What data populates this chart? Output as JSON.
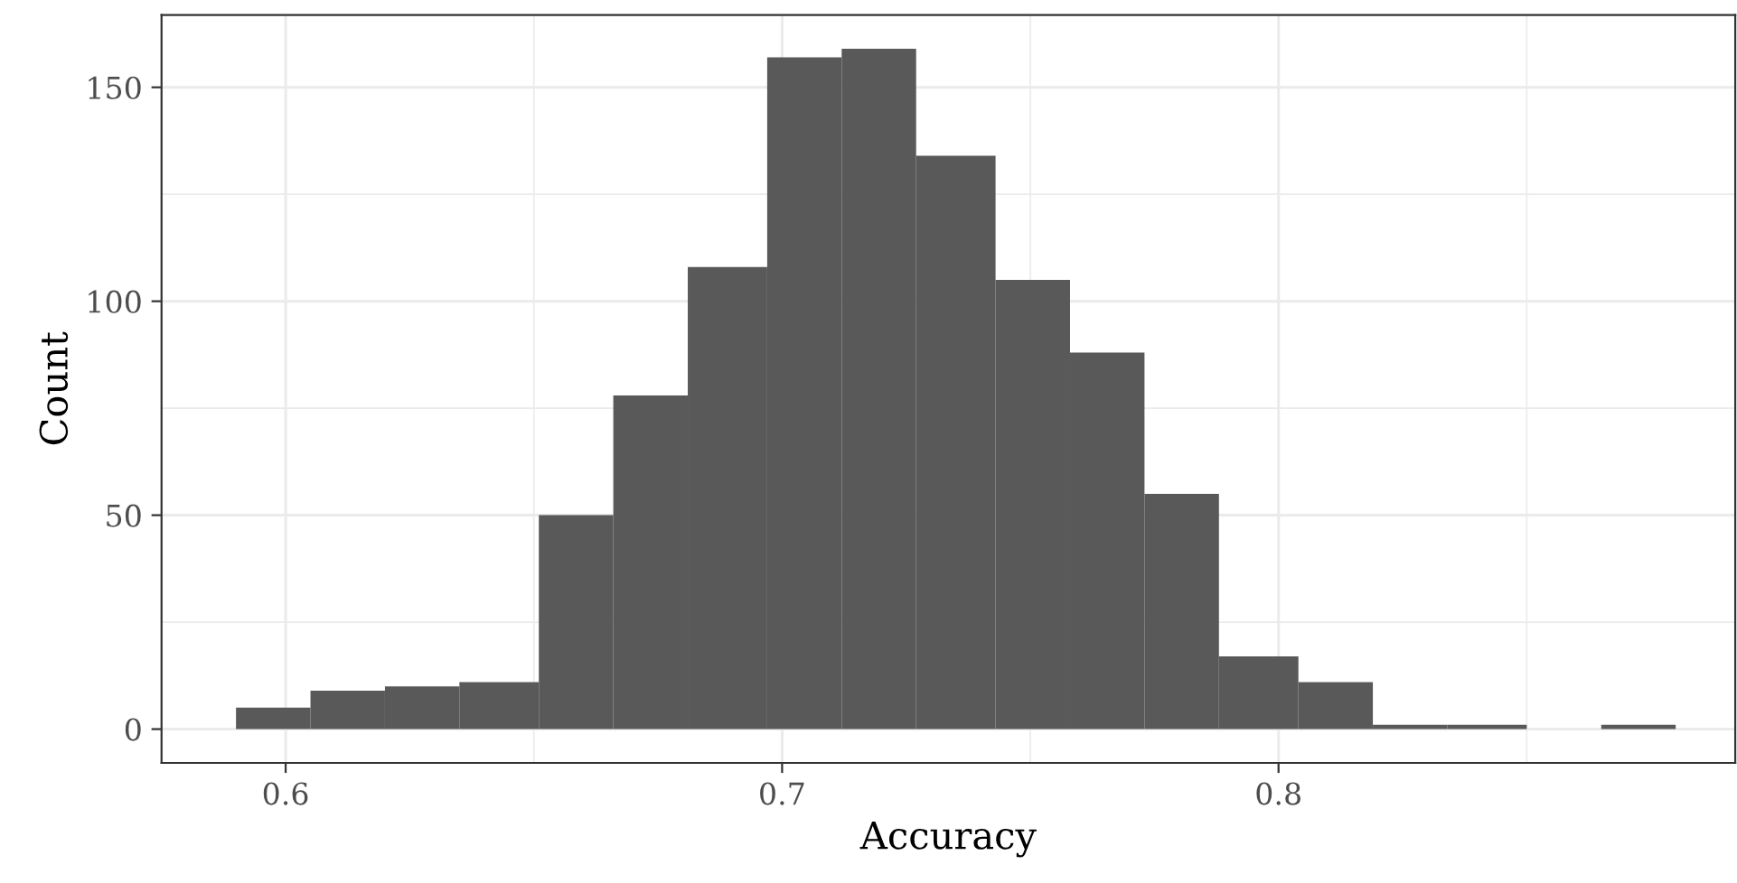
{
  "chart_data": {
    "type": "histogram",
    "xlabel": "Accuracy",
    "ylabel": "Count",
    "bins": [
      0.59,
      0.605,
      0.62,
      0.635,
      0.651,
      0.666,
      0.681,
      0.697,
      0.712,
      0.727,
      0.743,
      0.758,
      0.773,
      0.788,
      0.804,
      0.819,
      0.834,
      0.85,
      0.865,
      0.88
    ],
    "values": [
      5,
      9,
      10,
      11,
      50,
      78,
      108,
      157,
      159,
      134,
      105,
      88,
      55,
      17,
      11,
      1,
      1,
      0,
      1
    ],
    "color": "#595959",
    "xlim": [
      0.575,
      0.892
    ],
    "xticks": [
      0.6,
      0.7,
      0.8
    ],
    "ylim": [
      -7.9,
      166.9
    ],
    "yticks": [
      0,
      50,
      100,
      150
    ],
    "grid": true
  }
}
